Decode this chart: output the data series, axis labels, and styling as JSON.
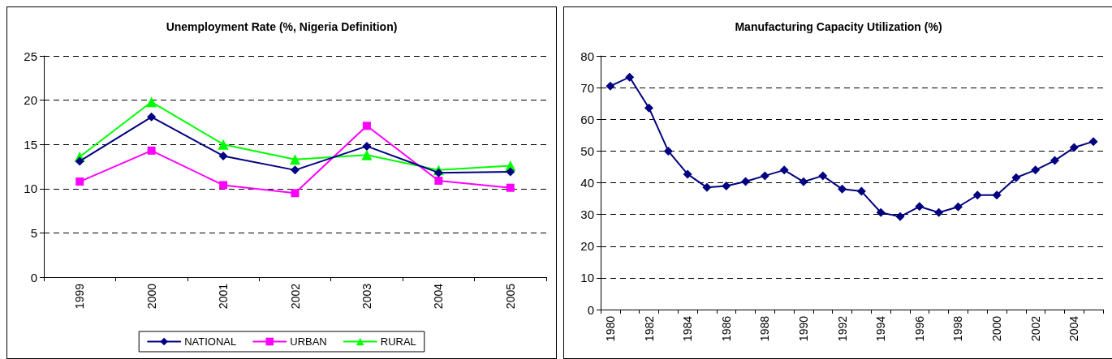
{
  "chart_data": [
    {
      "type": "line",
      "title": "Unemployment Rate (%, Nigeria Definition)",
      "categories": [
        "1999",
        "2000",
        "2001",
        "2002",
        "2003",
        "2004",
        "2005"
      ],
      "series": [
        {
          "name": "NATIONAL",
          "color": "#000080",
          "marker": "diamond",
          "values": [
            13.1,
            18.1,
            13.7,
            12.1,
            14.8,
            11.8,
            11.9
          ]
        },
        {
          "name": "URBAN",
          "color": "#ff00ff",
          "marker": "square",
          "values": [
            10.8,
            14.3,
            10.4,
            9.5,
            17.1,
            10.9,
            10.1
          ]
        },
        {
          "name": "RURAL",
          "color": "#00ff00",
          "marker": "triangle",
          "values": [
            13.6,
            19.8,
            15.0,
            13.3,
            13.8,
            12.1,
            12.6
          ]
        }
      ],
      "ylim": [
        0,
        25
      ],
      "yticks": [
        0,
        5,
        10,
        15,
        20,
        25
      ],
      "grid": "y",
      "legend": "bottom",
      "line_style": "solid"
    },
    {
      "type": "line",
      "title": "Manufacturing Capacity Utilization (%)",
      "categories": [
        "1980",
        null,
        "1982",
        null,
        "1984",
        null,
        "1986",
        null,
        "1988",
        null,
        "1990",
        null,
        "1992",
        null,
        "1994",
        null,
        "1996",
        null,
        "1998",
        null,
        "2000",
        null,
        "2002",
        null,
        "2004",
        null
      ],
      "series": [
        {
          "color": "#000080",
          "values": [
            70.5,
            73.3,
            63.6,
            50,
            42.7,
            38.5,
            39,
            40.4,
            42.2,
            44,
            40.3,
            42.2,
            38,
            37.3,
            30.6,
            29.3,
            32.5,
            30.6,
            32.4,
            36.1,
            36.1,
            41.6,
            44,
            47,
            51.1,
            53
          ]
        }
      ],
      "ylim": [
        0,
        80
      ],
      "yticks": [
        0,
        10,
        20,
        30,
        40,
        50,
        60,
        70,
        80
      ],
      "grid": "y",
      "legend": false,
      "marker": "diamond",
      "line_style": "solid"
    }
  ]
}
